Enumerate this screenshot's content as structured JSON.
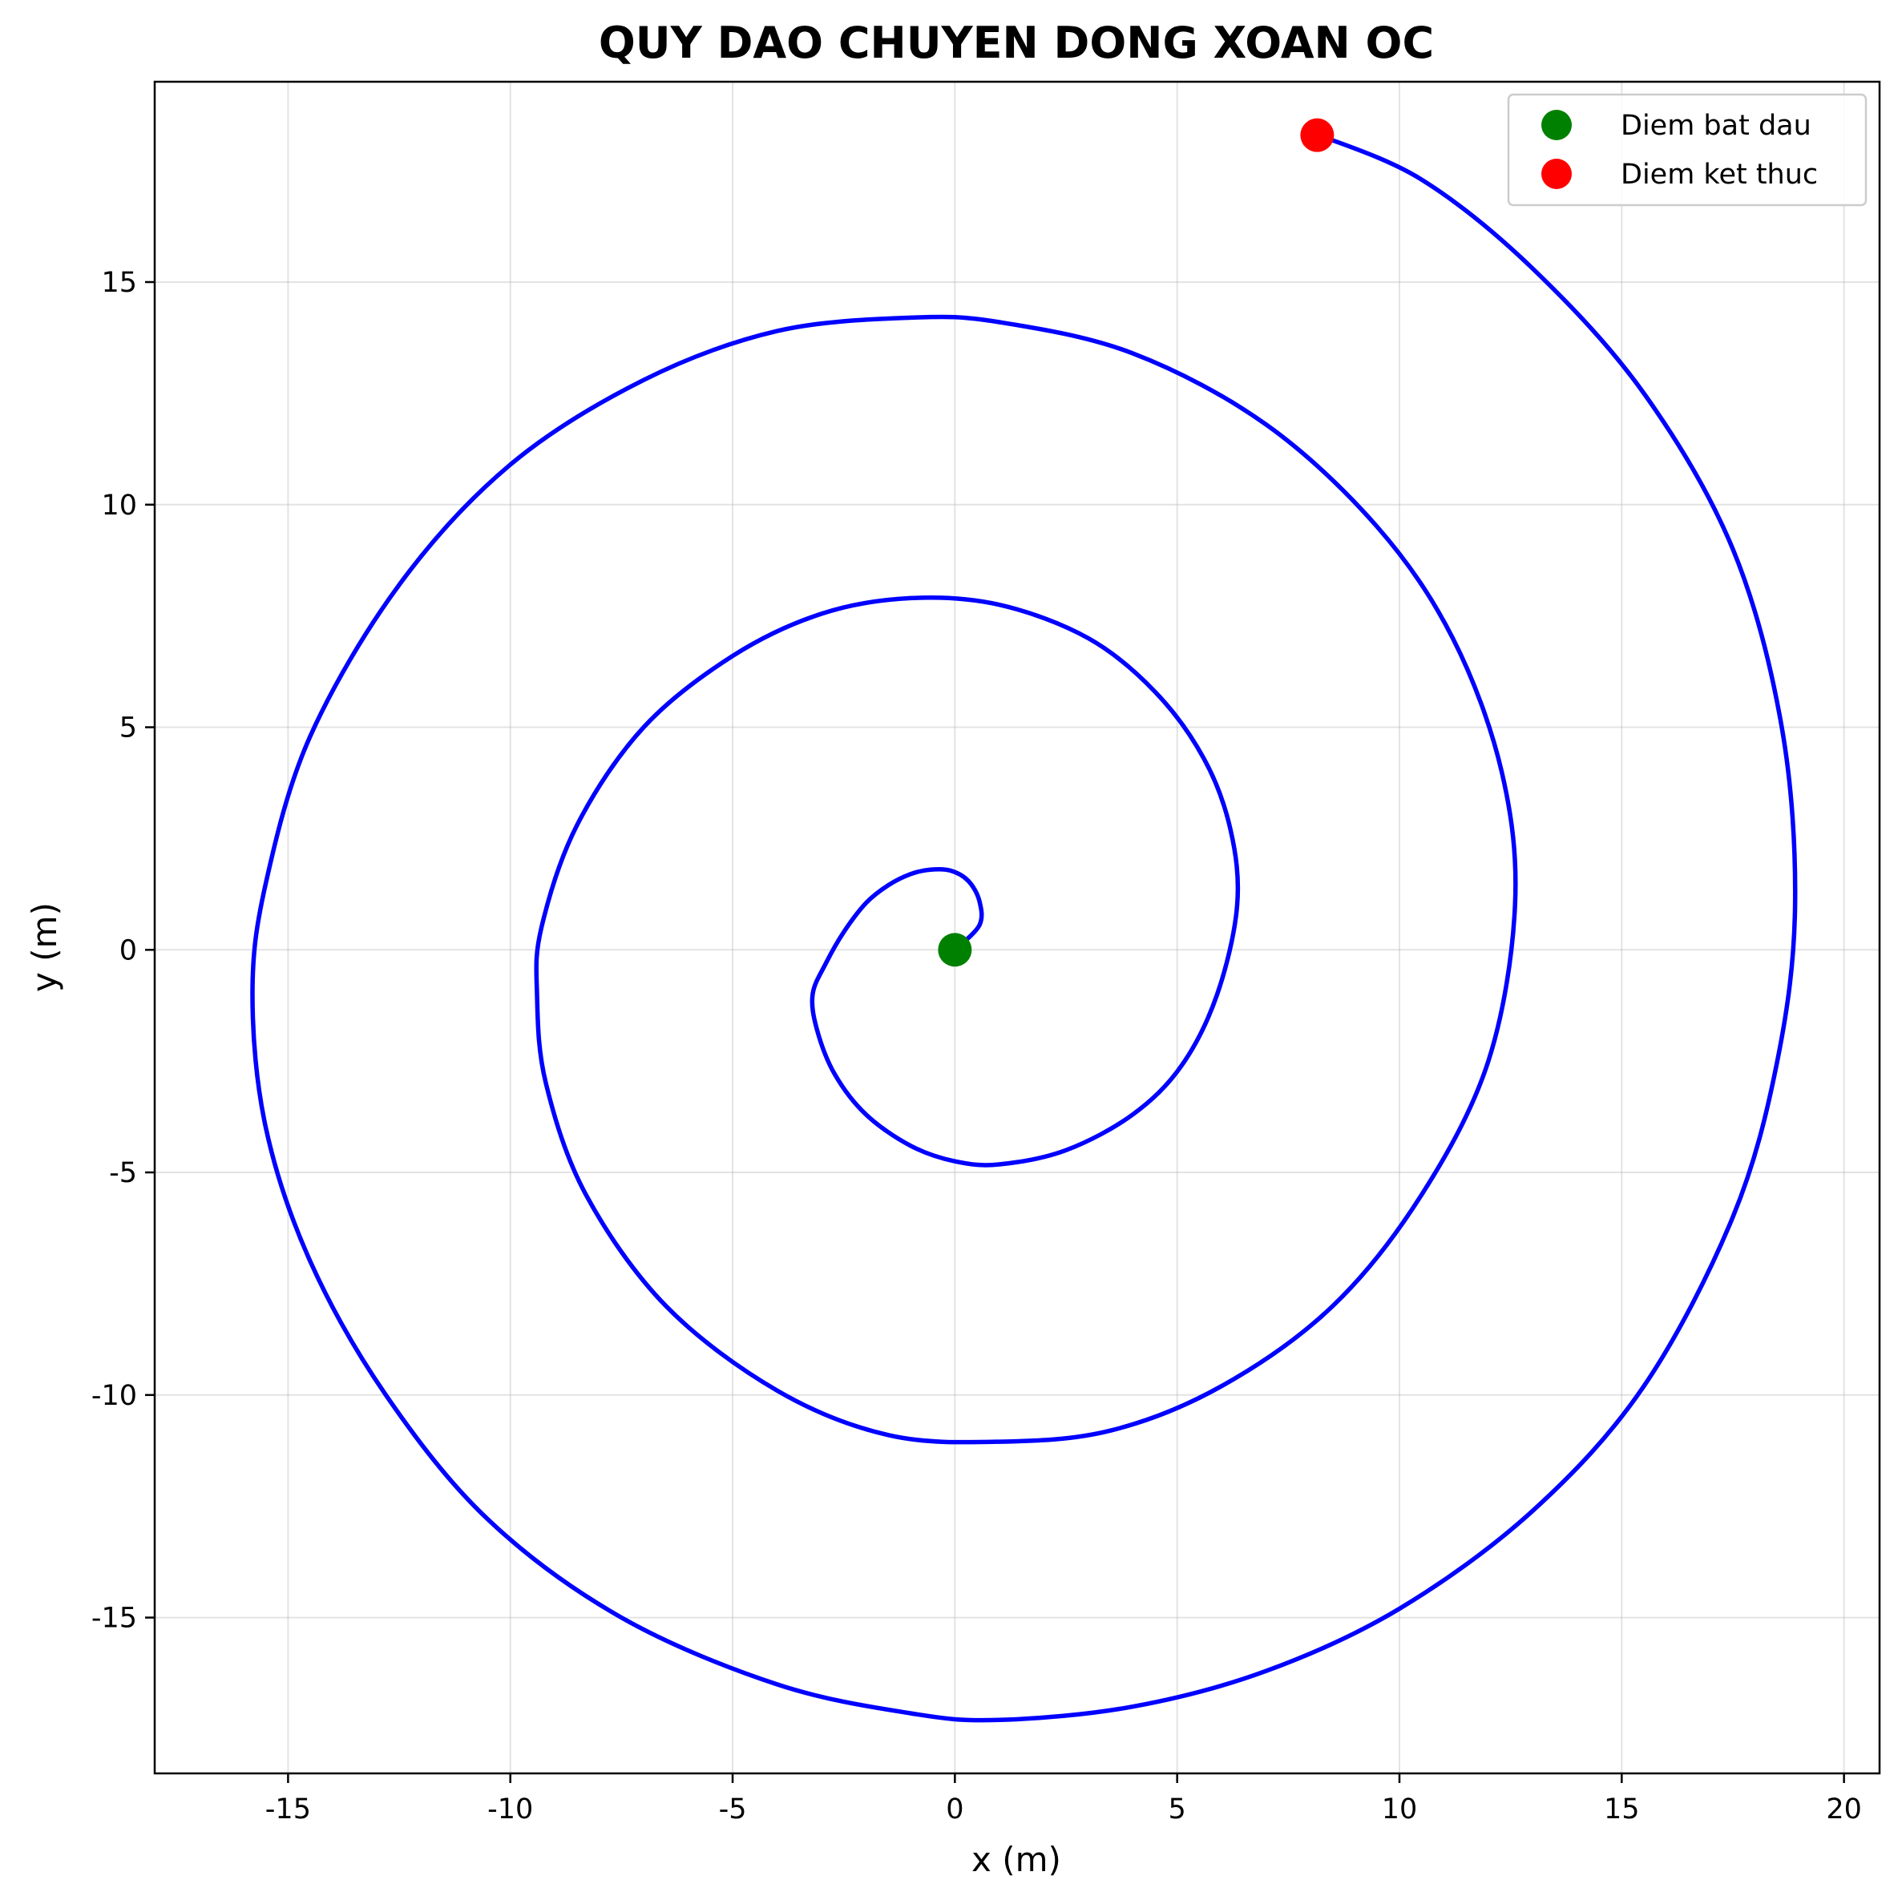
{
  "chart_data": {
    "type": "line",
    "title": "QUY DAO CHUYEN DONG XOAN OC",
    "xlabel": "x (m)",
    "ylabel": "y (m)",
    "xlim": [
      -18,
      20.8
    ],
    "ylim": [
      -18.5,
      19.5
    ],
    "xticks": [
      -15,
      -10,
      -5,
      0,
      5,
      10,
      15,
      20
    ],
    "yticks": [
      -15,
      -10,
      -5,
      0,
      5,
      10,
      15
    ],
    "xtick_labels": [
      "-15",
      "-10",
      "-5",
      "0",
      "5",
      "10",
      "15",
      "20"
    ],
    "ytick_labels": [
      "-15",
      "-10",
      "-5",
      "0",
      "5",
      "10",
      "15"
    ],
    "grid": true,
    "legend_placement": "top-right",
    "series": [
      {
        "kind": "line",
        "color": "#0000ff",
        "points": [
          [
            0.0,
            0.0
          ],
          [
            0.55,
            0.55
          ],
          [
            0.55,
            1.1
          ],
          [
            0.3,
            1.55
          ],
          [
            -0.1,
            1.78
          ],
          [
            -0.55,
            1.8
          ],
          [
            -1.0,
            1.7
          ],
          [
            -1.5,
            1.45
          ],
          [
            -2.0,
            1.05
          ],
          [
            -2.5,
            0.4
          ],
          [
            -2.9,
            -0.3
          ],
          [
            -3.2,
            -1.0
          ],
          [
            -3.1,
            -1.8
          ],
          [
            -2.7,
            -2.8
          ],
          [
            -2.0,
            -3.7
          ],
          [
            -1.0,
            -4.4
          ],
          [
            0.0,
            -4.75
          ],
          [
            1.0,
            -4.82
          ],
          [
            2.5,
            -4.5
          ],
          [
            4.0,
            -3.7
          ],
          [
            5.1,
            -2.6
          ],
          [
            5.9,
            -1.0
          ],
          [
            6.35,
            1.0
          ],
          [
            6.2,
            2.7
          ],
          [
            5.6,
            4.3
          ],
          [
            4.5,
            5.8
          ],
          [
            3.0,
            7.0
          ],
          [
            1.0,
            7.75
          ],
          [
            -1.0,
            7.9
          ],
          [
            -3.0,
            7.55
          ],
          [
            -5.0,
            6.6
          ],
          [
            -7.0,
            5.0
          ],
          [
            -8.5,
            2.8
          ],
          [
            -9.3,
            0.5
          ],
          [
            -9.4,
            -1.0
          ],
          [
            -9.2,
            -3.0
          ],
          [
            -8.3,
            -5.5
          ],
          [
            -6.5,
            -8.0
          ],
          [
            -4.0,
            -9.9
          ],
          [
            -1.5,
            -10.9
          ],
          [
            1.0,
            -11.05
          ],
          [
            3.5,
            -10.8
          ],
          [
            6.0,
            -9.8
          ],
          [
            8.5,
            -8.0
          ],
          [
            10.5,
            -5.5
          ],
          [
            12.0,
            -2.5
          ],
          [
            12.6,
            1.0
          ],
          [
            12.3,
            4.0
          ],
          [
            11.2,
            7.0
          ],
          [
            9.5,
            9.5
          ],
          [
            7.0,
            11.8
          ],
          [
            4.0,
            13.4
          ],
          [
            1.0,
            14.1
          ],
          [
            -1.0,
            14.2
          ],
          [
            -4.0,
            13.9
          ],
          [
            -7.0,
            12.8
          ],
          [
            -10.0,
            10.9
          ],
          [
            -12.5,
            8.2
          ],
          [
            -14.5,
            4.8
          ],
          [
            -15.5,
            1.5
          ],
          [
            -15.8,
            -1.0
          ],
          [
            -15.5,
            -4.0
          ],
          [
            -14.5,
            -7.0
          ],
          [
            -12.8,
            -10.0
          ],
          [
            -10.5,
            -12.8
          ],
          [
            -7.5,
            -15.0
          ],
          [
            -4.0,
            -16.5
          ],
          [
            -1.0,
            -17.15
          ],
          [
            1.0,
            -17.3
          ],
          [
            4.0,
            -17.0
          ],
          [
            7.0,
            -16.2
          ],
          [
            10.0,
            -14.8
          ],
          [
            13.0,
            -12.6
          ],
          [
            15.5,
            -9.8
          ],
          [
            17.5,
            -6.0
          ],
          [
            18.5,
            -2.5
          ],
          [
            18.9,
            1.0
          ],
          [
            18.6,
            5.0
          ],
          [
            17.5,
            9.0
          ],
          [
            15.5,
            12.5
          ],
          [
            13.0,
            15.3
          ],
          [
            10.5,
            17.3
          ],
          [
            8.2,
            18.3
          ]
        ]
      }
    ],
    "markers": [
      {
        "name": "Diem bat dau",
        "x": 0,
        "y": 0,
        "color": "#008000"
      },
      {
        "name": "Diem ket thuc",
        "x": 8.15,
        "y": 18.3,
        "color": "#ff0000"
      }
    ]
  }
}
